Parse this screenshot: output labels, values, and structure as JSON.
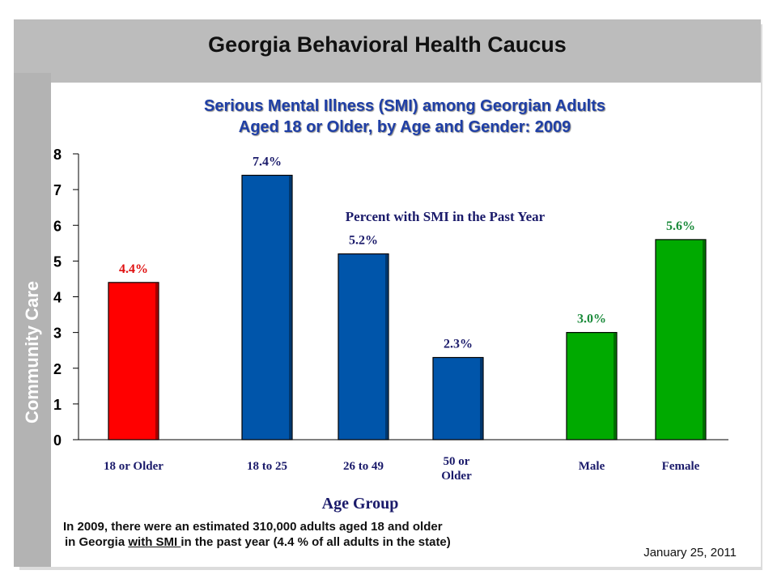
{
  "header": {
    "title": "Georgia Behavioral Health Caucus"
  },
  "sidebar": {
    "label": "Community Care"
  },
  "chart_data": {
    "type": "bar",
    "title": "Serious Mental Illness (SMI) among Georgian Adults",
    "subtitle": "Aged 18 or Older, by Age and Gender: 2009",
    "inner_label": "Percent with SMI in the Past Year",
    "xlabel": "Age Group",
    "ylabel": "",
    "ylim": [
      0,
      8
    ],
    "yticks": [
      "0",
      "1",
      "2",
      "3",
      "4",
      "5",
      "6",
      "7",
      "8"
    ],
    "categories": [
      "18 or Older",
      "18 to 25",
      "26 to 49",
      "50 or Older",
      "Male",
      "Female"
    ],
    "values": [
      4.4,
      7.4,
      5.2,
      2.3,
      3.0,
      5.6
    ],
    "data_labels": [
      "4.4%",
      "7.4%",
      "5.2%",
      "2.3%",
      "3.0%",
      "5.6%"
    ],
    "colors": [
      "#ff0000",
      "#0055aa",
      "#0055aa",
      "#0055aa",
      "#00aa00",
      "#00aa00"
    ],
    "label_colors": [
      "#e01010",
      "#1a1a6a",
      "#1a1a6a",
      "#1a1a6a",
      "#1a8a3a",
      "#1a8a3a"
    ],
    "grid": false,
    "legend": "none"
  },
  "footer": {
    "note_line1": "In 2009, there were an estimated 310,000 adults aged 18 and older",
    "note_line2_pre": "in Georgia ",
    "note_line2_underlined": "with SMI ",
    "note_line2_post": "in the past year (4.4 % of all adults in the state)",
    "date": "January 25, 2011"
  }
}
